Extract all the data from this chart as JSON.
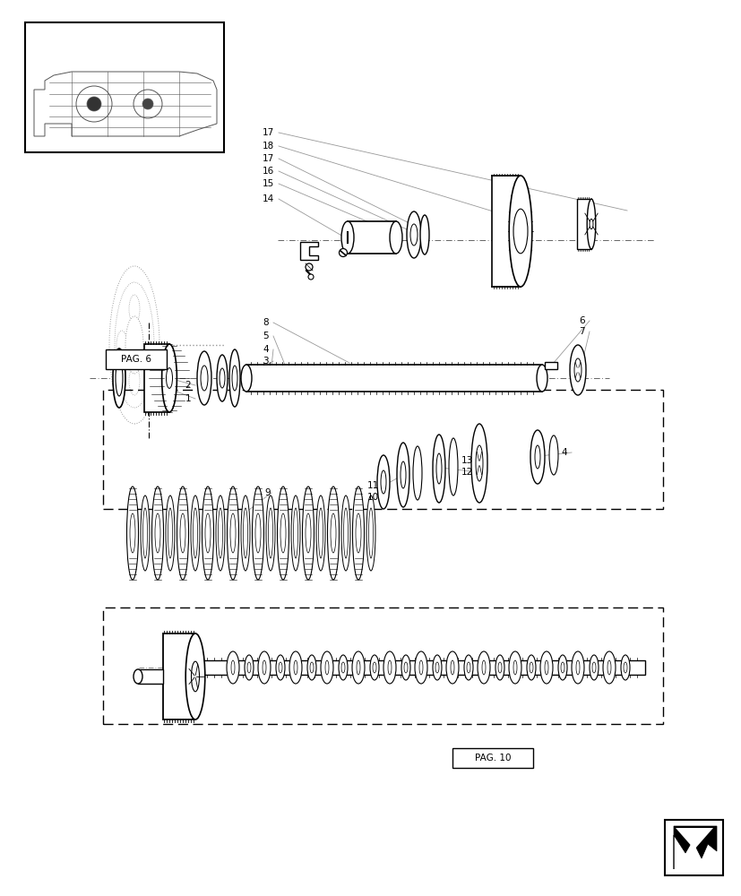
{
  "bg_color": "#ffffff",
  "lc": "#000000",
  "lg": "#aaaaaa",
  "mg": "#999999",
  "dg": "#555555",
  "fig_w": 8.28,
  "fig_h": 10.0,
  "dpi": 100
}
